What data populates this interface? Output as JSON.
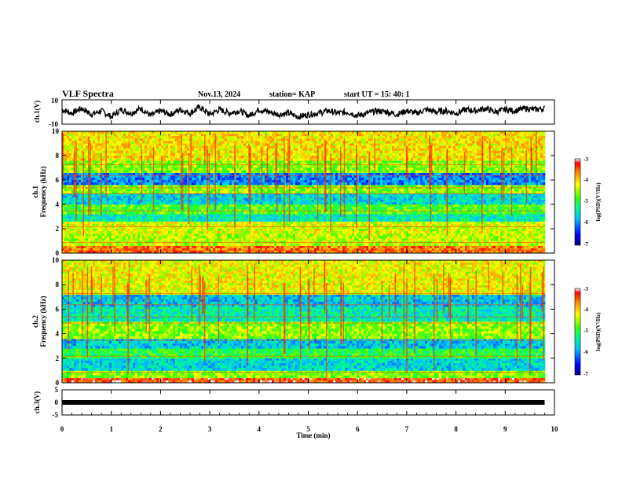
{
  "header": {
    "title": "VLF Spectra",
    "date": "Nov.13, 2024",
    "station": "station= KAP",
    "start": "start  UT =   15: 40: 1"
  },
  "chart_data": [
    {
      "type": "line",
      "panel": "ch1-waveform",
      "ylabel": "ch.1(V)",
      "ylim": [
        -10,
        10
      ],
      "yticks": [
        "10",
        "-10"
      ],
      "x_range_min": [
        0,
        9.8
      ],
      "series": [
        {
          "x": [
            0,
            0.2,
            0.4,
            0.6,
            0.8,
            1.0,
            1.2,
            1.4,
            1.6,
            1.8,
            2.0,
            2.2,
            2.4,
            2.6,
            2.8,
            3.0,
            3.2,
            3.4,
            3.6,
            3.8,
            4.0,
            4.2,
            4.4,
            4.6,
            4.8,
            5.0,
            5.2,
            5.4,
            5.6,
            5.8,
            6.0,
            6.2,
            6.4,
            6.6,
            6.8,
            7.0,
            7.2,
            7.4,
            7.6,
            7.8,
            8.0,
            8.2,
            8.4,
            8.6,
            8.8,
            9.0,
            9.2,
            9.4,
            9.6,
            9.8
          ],
          "values": [
            2,
            -1,
            3,
            -2,
            1,
            -4,
            2,
            -1,
            3,
            -3,
            1,
            -2,
            2,
            -1,
            4,
            -2,
            2,
            -1,
            1,
            -3,
            2,
            0,
            -2,
            -1,
            -4,
            -2,
            -1,
            1,
            -1,
            0,
            -3,
            -1,
            1,
            0,
            -2,
            1,
            -1,
            2,
            0,
            1,
            -1,
            2,
            1,
            3,
            0,
            2,
            1,
            3,
            2,
            3
          ]
        }
      ]
    },
    {
      "type": "heatmap",
      "panel": "ch1-spectrogram",
      "ylabel": "ch.1\nFrequency (kHz)",
      "ylim": [
        0,
        10
      ],
      "yticks": [
        "0",
        "2",
        "4",
        "6",
        "8",
        "10"
      ],
      "colorbar": {
        "label": "log(PSD)(V²/Hz)",
        "range": [
          -7,
          -3
        ],
        "ticks": [
          "-3",
          "-4",
          "-5",
          "-6",
          "-7"
        ]
      },
      "bands": [
        {
          "from": 0,
          "to": 0.6,
          "level": -3.6
        },
        {
          "from": 0.6,
          "to": 1.6,
          "level": -4.4
        },
        {
          "from": 1.6,
          "to": 2.6,
          "level": -4.3
        },
        {
          "from": 2.6,
          "to": 3.2,
          "level": -5.4
        },
        {
          "from": 3.2,
          "to": 4.0,
          "level": -4.8
        },
        {
          "from": 4.0,
          "to": 4.9,
          "level": -5.6
        },
        {
          "from": 4.9,
          "to": 5.6,
          "level": -4.6
        },
        {
          "from": 5.6,
          "to": 6.6,
          "level": -6.0
        },
        {
          "from": 6.6,
          "to": 7.6,
          "level": -4.6
        },
        {
          "from": 7.6,
          "to": 10,
          "level": -4.1
        }
      ]
    },
    {
      "type": "heatmap",
      "panel": "ch2-spectrogram",
      "ylabel": "ch.2\nFrequency (kHz)",
      "ylim": [
        0,
        10
      ],
      "yticks": [
        "0",
        "2",
        "4",
        "6",
        "8",
        "10"
      ],
      "colorbar": {
        "label": "log(PSD)(V²/Hz)",
        "range": [
          -7,
          -3
        ],
        "ticks": [
          "-3",
          "-4",
          "-5",
          "-6",
          "-7"
        ]
      },
      "bands": [
        {
          "from": 0,
          "to": 0.4,
          "level": -3.4
        },
        {
          "from": 0.4,
          "to": 1.0,
          "level": -4.6
        },
        {
          "from": 1.0,
          "to": 2.0,
          "level": -5.6
        },
        {
          "from": 2.0,
          "to": 2.8,
          "level": -5.0
        },
        {
          "from": 2.8,
          "to": 3.6,
          "level": -5.7
        },
        {
          "from": 3.6,
          "to": 5.0,
          "level": -4.6
        },
        {
          "from": 5.0,
          "to": 6.2,
          "level": -5.4
        },
        {
          "from": 6.2,
          "to": 7.2,
          "level": -5.7
        },
        {
          "from": 7.2,
          "to": 10,
          "level": -4.2
        }
      ]
    },
    {
      "type": "line",
      "panel": "ch3-waveform",
      "ylabel": "ch.3(V)",
      "ylim": [
        -5,
        5
      ],
      "yticks": [
        "5",
        "0",
        "-5"
      ],
      "series": [
        {
          "x": [
            0,
            9.8
          ],
          "values": [
            0,
            0
          ]
        }
      ]
    }
  ],
  "xaxis": {
    "label": "Time (min)",
    "ticks": [
      "0",
      "1",
      "2",
      "3",
      "4",
      "5",
      "6",
      "7",
      "8",
      "9",
      "10"
    ],
    "range": [
      0,
      10
    ]
  },
  "colors": {
    "line": "#000000",
    "frame": "#000000"
  }
}
